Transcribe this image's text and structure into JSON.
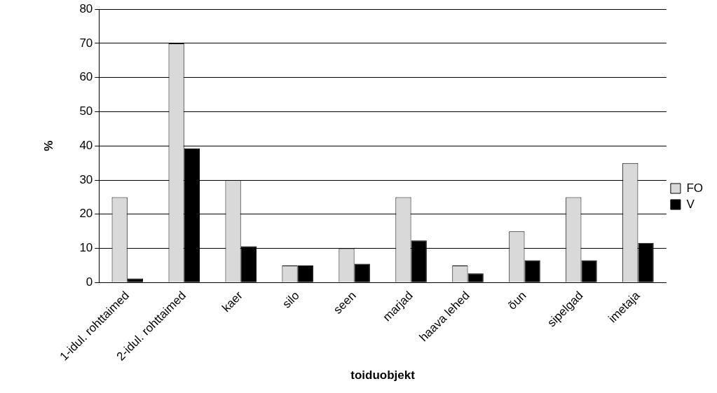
{
  "chart_data": {
    "type": "bar",
    "xlabel": "toiduobjekt",
    "ylabel": "%",
    "categories": [
      "1-idul. rohttaimed",
      "2-idul. rohttaimed",
      "kaer",
      "silo",
      "seen",
      "marjad",
      "haava lehed",
      "õun",
      "sipelgad",
      "imetaja"
    ],
    "series": [
      {
        "name": "FO",
        "color": "#d9d9d9",
        "values": [
          25,
          70,
          30,
          5,
          10,
          25,
          5,
          15,
          25,
          35
        ]
      },
      {
        "name": "V",
        "color": "#000000",
        "values": [
          1.2,
          39.3,
          10.6,
          5,
          5.5,
          12.3,
          2.7,
          6.5,
          6.5,
          11.6
        ]
      }
    ],
    "ylim": [
      0,
      80
    ],
    "yticks": [
      0,
      10,
      20,
      30,
      40,
      50,
      60,
      70,
      80
    ],
    "grid": "y",
    "legend": "right"
  }
}
